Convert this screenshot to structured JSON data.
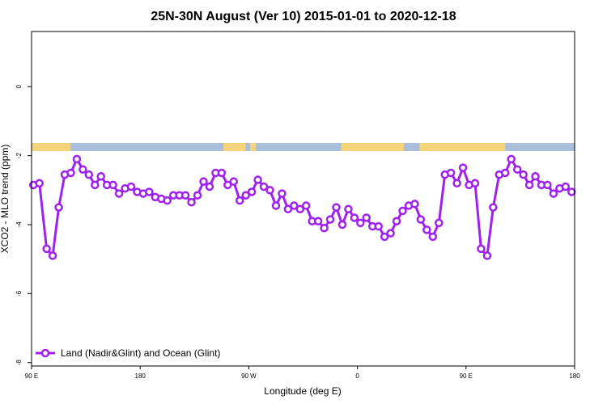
{
  "chart_data": {
    "type": "line",
    "title": "25N-30N August (Ver 10)   2015-01-01 to 2020-12-18",
    "xlabel": "Longitude (deg E)",
    "ylabel": "XCO2 - MLO trend (ppm)",
    "xlim": [
      0,
      90
    ],
    "ylim": [
      -8.1,
      1.6
    ],
    "x_ticks": [
      {
        "value": 0,
        "label": "90 E"
      },
      {
        "value": 18,
        "label": "180"
      },
      {
        "value": 36,
        "label": "90 W"
      },
      {
        "value": 54,
        "label": "0"
      },
      {
        "value": 72,
        "label": "90 E"
      },
      {
        "value": 90,
        "label": "180"
      }
    ],
    "y_ticks": [
      {
        "value": 0,
        "label": "0"
      },
      {
        "value": -2,
        "label": "-2"
      },
      {
        "value": -4,
        "label": "-4"
      },
      {
        "value": -6,
        "label": "-6"
      },
      {
        "value": -8,
        "label": "-8"
      }
    ],
    "land_ocean_strip": {
      "ocean_color": "#a8bedb",
      "land_color": "#f4d47a",
      "land_segments": [
        [
          0,
          6.5
        ],
        [
          31.8,
          35.5
        ],
        [
          36.2,
          37.2
        ],
        [
          51.3,
          61.7
        ],
        [
          64.3,
          78.5
        ]
      ]
    },
    "series": [
      {
        "name": "Land (Nadir&Glint) and Ocean (Glint)",
        "color": "#a020f0",
        "x": [
          0.3,
          1.3,
          2.5,
          3.5,
          4.5,
          5.5,
          6.5,
          7.5,
          8.5,
          9.5,
          10.5,
          11.5,
          12.5,
          13.5,
          14.5,
          15.5,
          16.5,
          17.5,
          18.5,
          19.5,
          20.5,
          21.5,
          22.5,
          23.5,
          24.5,
          25.5,
          26.5,
          27.5,
          28.5,
          29.5,
          30.5,
          31.5,
          32.5,
          33.5,
          34.5,
          35.5,
          36.5,
          37.5,
          38.5,
          39.5,
          40.5,
          41.5,
          42.5,
          43.5,
          44.5,
          45.5,
          46.5,
          47.5,
          48.5,
          49.5,
          50.5,
          51.5,
          52.5,
          53.5,
          54.5,
          55.5,
          56.5,
          57.5,
          58.5,
          59.5,
          60.5,
          61.5,
          62.5,
          63.5,
          64.5,
          65.5,
          66.5,
          67.5,
          68.5,
          69.5,
          70.5,
          71.5,
          72.5,
          73.5,
          74.5,
          75.5,
          76.5,
          77.5,
          78.5,
          79.5,
          80.5,
          81.5,
          82.5,
          83.5,
          84.5,
          85.5,
          86.5,
          87.5,
          88.5,
          89.5
        ],
        "y": [
          -2.85,
          -2.8,
          -4.7,
          -4.9,
          -3.5,
          -2.55,
          -2.5,
          -2.1,
          -2.4,
          -2.55,
          -2.85,
          -2.6,
          -2.85,
          -2.85,
          -3.1,
          -2.95,
          -2.9,
          -3.05,
          -3.1,
          -3.05,
          -3.2,
          -3.25,
          -3.3,
          -3.15,
          -3.15,
          -3.15,
          -3.35,
          -3.15,
          -2.75,
          -2.9,
          -2.5,
          -2.5,
          -2.85,
          -2.75,
          -3.3,
          -3.15,
          -3.05,
          -2.7,
          -2.9,
          -3.0,
          -3.45,
          -3.1,
          -3.55,
          -3.45,
          -3.55,
          -3.45,
          -3.9,
          -3.9,
          -4.1,
          -3.85,
          -3.5,
          -4.0,
          -3.55,
          -3.8,
          -3.95,
          -3.8,
          -4.05,
          -4.05,
          -4.35,
          -4.25,
          -3.9,
          -3.6,
          -3.45,
          -3.4,
          -3.85,
          -4.15,
          -4.35,
          -3.95,
          -2.55,
          -2.5,
          -2.8,
          -2.35,
          -2.85,
          -2.8,
          -4.7,
          -4.9,
          -3.5,
          -2.55,
          -2.5,
          -2.1,
          -2.4,
          -2.55,
          -2.85,
          -2.6,
          -2.85,
          -2.85,
          -3.1,
          -2.95,
          -2.9,
          -3.05
        ]
      }
    ],
    "legend": {
      "position": "bottom-left"
    }
  }
}
